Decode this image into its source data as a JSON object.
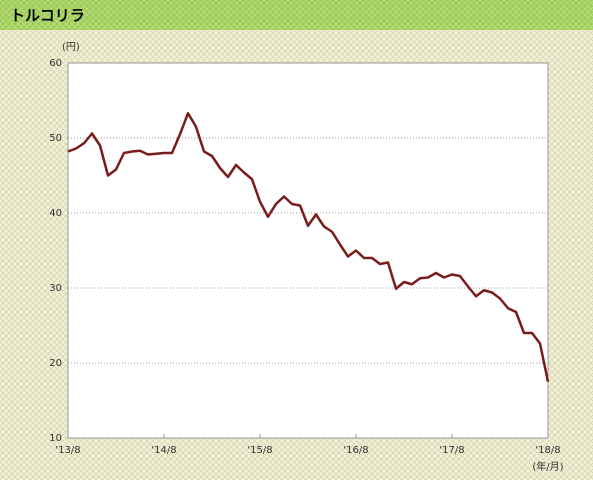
{
  "chart_data": {
    "type": "line",
    "title": "トルコリラ",
    "y_label": "(円)",
    "x_label": "(年/月)",
    "categories": [
      "'13/8",
      null,
      null,
      null,
      null,
      null,
      null,
      null,
      null,
      null,
      null,
      null,
      "'14/8",
      null,
      null,
      null,
      null,
      null,
      null,
      null,
      null,
      null,
      null,
      null,
      "'15/8",
      null,
      null,
      null,
      null,
      null,
      null,
      null,
      null,
      null,
      null,
      null,
      "'16/8",
      null,
      null,
      null,
      null,
      null,
      null,
      null,
      null,
      null,
      null,
      null,
      "'17/8",
      null,
      null,
      null,
      null,
      null,
      null,
      null,
      null,
      null,
      null,
      null,
      "'18/8"
    ],
    "series": [
      {
        "name": "トルコリラ",
        "color": "#7a1c1c",
        "values": [
          48.2,
          48.6,
          49.3,
          50.6,
          49.0,
          45.0,
          45.8,
          48.0,
          48.2,
          48.3,
          47.8,
          47.9,
          48.0,
          48.0,
          50.5,
          53.3,
          51.5,
          48.2,
          47.6,
          46.0,
          44.8,
          46.4,
          45.4,
          44.5,
          41.5,
          39.5,
          41.2,
          42.2,
          41.2,
          41.0,
          38.3,
          39.8,
          38.2,
          37.5,
          35.8,
          34.2,
          35.0,
          34.0,
          34.0,
          33.2,
          33.4,
          29.9,
          30.8,
          30.5,
          31.3,
          31.4,
          32.0,
          31.4,
          31.8,
          31.6,
          30.2,
          28.9,
          29.7,
          29.4,
          28.6,
          27.3,
          26.8,
          24.0,
          24.0,
          22.6,
          17.5
        ]
      }
    ],
    "ylim": [
      10,
      60
    ],
    "yticks": [
      10,
      20,
      30,
      40,
      50,
      60
    ],
    "grid": true
  }
}
